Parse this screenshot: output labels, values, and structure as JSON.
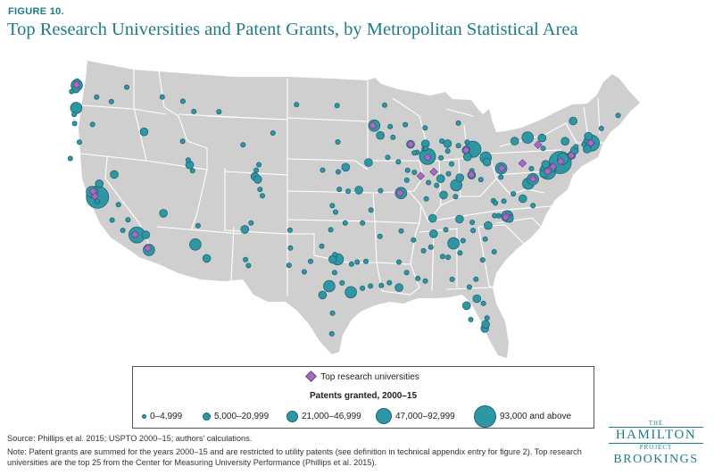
{
  "figure_label": "FIGURE 10.",
  "title": "Top Research Universities and Patent Grants, by Metropolitan Statistical Area",
  "legend": {
    "universities_label": "Top research universities",
    "size_heading": "Patents granted, 2000–15",
    "size_classes": [
      {
        "label": "0–4,999",
        "class": 1
      },
      {
        "label": "5,000–20,999",
        "class": 2
      },
      {
        "label": "21,000–46,999",
        "class": 3
      },
      {
        "label": "47,000–92,999",
        "class": 4
      },
      {
        "label": "93,000 and above",
        "class": 5
      }
    ]
  },
  "source": "Source: Phillips et al. 2015; USPTO 2000–15; authors' calculations.",
  "note": "Note: Patent grants are summed for the years 2000–15 and are restricted to utility patents (see definition in technical appendix entry for figure 2). Top research universities are the top 25 from the Center for Measuring University Performance (Phillips et al. 2015).",
  "logo": {
    "the": "THE",
    "hamilton": "HAMILTON",
    "project": "PROJECT",
    "brookings": "BROOKINGS"
  },
  "colors": {
    "land": "#cfcfcf",
    "borders": "#ffffff",
    "bubble_fill": "#2e97a5",
    "bubble_stroke": "#1d6470",
    "university_fill": "#a86cc1",
    "title": "#1f7c87"
  },
  "map": {
    "projection": "albers-usa-contiguous",
    "bubbles": [
      {
        "lon": -122.3,
        "lat": 47.6,
        "class": 3
      },
      {
        "lon": -122.45,
        "lat": 47.25,
        "class": 2
      },
      {
        "lon": -122.2,
        "lat": 48.0,
        "class": 1
      },
      {
        "lon": -122.9,
        "lat": 47.0,
        "class": 1
      },
      {
        "lon": -117.4,
        "lat": 47.65,
        "class": 1
      },
      {
        "lon": -120.5,
        "lat": 46.6,
        "class": 1
      },
      {
        "lon": -119.1,
        "lat": 46.25,
        "class": 1
      },
      {
        "lon": -122.7,
        "lat": 45.5,
        "class": 3
      },
      {
        "lon": -123.0,
        "lat": 44.9,
        "class": 1
      },
      {
        "lon": -123.1,
        "lat": 44.05,
        "class": 1
      },
      {
        "lon": -121.3,
        "lat": 44.05,
        "class": 1
      },
      {
        "lon": -122.9,
        "lat": 42.35,
        "class": 1
      },
      {
        "lon": -124.1,
        "lat": 40.8,
        "class": 1
      },
      {
        "lon": -121.5,
        "lat": 38.6,
        "class": 2
      },
      {
        "lon": -122.4,
        "lat": 37.8,
        "class": 3
      },
      {
        "lon": -121.9,
        "lat": 37.35,
        "class": 5
      },
      {
        "lon": -122.0,
        "lat": 36.95,
        "class": 1
      },
      {
        "lon": -119.8,
        "lat": 36.75,
        "class": 1
      },
      {
        "lon": -119.0,
        "lat": 35.4,
        "class": 1
      },
      {
        "lon": -120.7,
        "lat": 35.3,
        "class": 1
      },
      {
        "lon": -119.7,
        "lat": 34.4,
        "class": 1
      },
      {
        "lon": -118.25,
        "lat": 34.05,
        "class": 4
      },
      {
        "lon": -117.3,
        "lat": 34.1,
        "class": 2
      },
      {
        "lon": -117.15,
        "lat": 32.72,
        "class": 3
      },
      {
        "lon": -115.15,
        "lat": 36.17,
        "class": 2
      },
      {
        "lon": -119.8,
        "lat": 39.53,
        "class": 2
      },
      {
        "lon": -116.2,
        "lat": 43.6,
        "class": 2
      },
      {
        "lon": -112.4,
        "lat": 42.9,
        "class": 1
      },
      {
        "lon": -111.9,
        "lat": 40.76,
        "class": 2
      },
      {
        "lon": -111.65,
        "lat": 40.23,
        "class": 1
      },
      {
        "lon": -112.0,
        "lat": 41.2,
        "class": 1
      },
      {
        "lon": -111.6,
        "lat": 35.2,
        "class": 1
      },
      {
        "lon": -112.07,
        "lat": 33.45,
        "class": 3
      },
      {
        "lon": -110.97,
        "lat": 32.22,
        "class": 2
      },
      {
        "lon": -108.5,
        "lat": 45.8,
        "class": 1
      },
      {
        "lon": -111.0,
        "lat": 45.7,
        "class": 1
      },
      {
        "lon": -114.0,
        "lat": 46.9,
        "class": 1
      },
      {
        "lon": -112.0,
        "lat": 46.6,
        "class": 1
      },
      {
        "lon": -104.8,
        "lat": 41.1,
        "class": 1
      },
      {
        "lon": -106.3,
        "lat": 42.85,
        "class": 1
      },
      {
        "lon": -105.1,
        "lat": 40.58,
        "class": 1
      },
      {
        "lon": -105.27,
        "lat": 40.0,
        "class": 2
      },
      {
        "lon": -104.99,
        "lat": 39.74,
        "class": 2
      },
      {
        "lon": -104.82,
        "lat": 38.83,
        "class": 1
      },
      {
        "lon": -104.6,
        "lat": 38.25,
        "class": 1
      },
      {
        "lon": -106.65,
        "lat": 35.08,
        "class": 2
      },
      {
        "lon": -105.94,
        "lat": 35.69,
        "class": 1
      },
      {
        "lon": -106.49,
        "lat": 31.76,
        "class": 1
      },
      {
        "lon": -106.77,
        "lat": 32.3,
        "class": 1
      },
      {
        "lon": -100.78,
        "lat": 46.8,
        "class": 1
      },
      {
        "lon": -96.79,
        "lat": 46.88,
        "class": 1
      },
      {
        "lon": -96.73,
        "lat": 43.55,
        "class": 1
      },
      {
        "lon": -103.23,
        "lat": 44.08,
        "class": 1
      },
      {
        "lon": -96.7,
        "lat": 40.81,
        "class": 1
      },
      {
        "lon": -95.94,
        "lat": 41.26,
        "class": 2
      },
      {
        "lon": -97.34,
        "lat": 37.69,
        "class": 1
      },
      {
        "lon": -95.68,
        "lat": 39.05,
        "class": 1
      },
      {
        "lon": -97.52,
        "lat": 35.47,
        "class": 1
      },
      {
        "lon": -95.99,
        "lat": 36.15,
        "class": 1
      },
      {
        "lon": -101.85,
        "lat": 35.22,
        "class": 1
      },
      {
        "lon": -101.86,
        "lat": 33.58,
        "class": 1
      },
      {
        "lon": -96.8,
        "lat": 32.78,
        "class": 3
      },
      {
        "lon": -97.33,
        "lat": 32.75,
        "class": 2
      },
      {
        "lon": -97.74,
        "lat": 30.27,
        "class": 3
      },
      {
        "lon": -98.49,
        "lat": 29.42,
        "class": 2
      },
      {
        "lon": -95.37,
        "lat": 29.76,
        "class": 3
      },
      {
        "lon": -97.4,
        "lat": 27.8,
        "class": 1
      },
      {
        "lon": -97.5,
        "lat": 25.9,
        "class": 1
      },
      {
        "lon": -94.1,
        "lat": 30.08,
        "class": 1
      },
      {
        "lon": -93.1,
        "lat": 44.95,
        "class": 3
      },
      {
        "lon": -92.47,
        "lat": 44.02,
        "class": 2
      },
      {
        "lon": -92.1,
        "lat": 46.79,
        "class": 1
      },
      {
        "lon": -93.62,
        "lat": 41.59,
        "class": 2
      },
      {
        "lon": -91.67,
        "lat": 41.98,
        "class": 1
      },
      {
        "lon": -90.58,
        "lat": 41.52,
        "class": 1
      },
      {
        "lon": -94.58,
        "lat": 39.1,
        "class": 2
      },
      {
        "lon": -90.2,
        "lat": 38.63,
        "class": 3
      },
      {
        "lon": -92.33,
        "lat": 38.95,
        "class": 1
      },
      {
        "lon": -93.29,
        "lat": 37.21,
        "class": 1
      },
      {
        "lon": -92.29,
        "lat": 34.75,
        "class": 1
      },
      {
        "lon": -94.16,
        "lat": 36.06,
        "class": 1
      },
      {
        "lon": -91.15,
        "lat": 30.45,
        "class": 1
      },
      {
        "lon": -90.07,
        "lat": 29.95,
        "class": 2
      },
      {
        "lon": -93.75,
        "lat": 32.52,
        "class": 1
      },
      {
        "lon": -89.4,
        "lat": 43.07,
        "class": 2
      },
      {
        "lon": -87.9,
        "lat": 43.04,
        "class": 2
      },
      {
        "lon": -88.01,
        "lat": 44.52,
        "class": 1
      },
      {
        "lon": -87.63,
        "lat": 41.88,
        "class": 4
      },
      {
        "lon": -88.24,
        "lat": 40.11,
        "class": 1
      },
      {
        "lon": -89.6,
        "lat": 40.7,
        "class": 1
      },
      {
        "lon": -86.16,
        "lat": 39.77,
        "class": 2
      },
      {
        "lon": -86.25,
        "lat": 41.68,
        "class": 1
      },
      {
        "lon": -85.13,
        "lat": 41.08,
        "class": 1
      },
      {
        "lon": -86.91,
        "lat": 40.42,
        "class": 1
      },
      {
        "lon": -85.67,
        "lat": 42.96,
        "class": 2
      },
      {
        "lon": -84.55,
        "lat": 42.73,
        "class": 1
      },
      {
        "lon": -83.05,
        "lat": 42.33,
        "class": 4
      },
      {
        "lon": -83.74,
        "lat": 42.28,
        "class": 2
      },
      {
        "lon": -83.69,
        "lat": 43.01,
        "class": 1
      },
      {
        "lon": -81.69,
        "lat": 41.5,
        "class": 3
      },
      {
        "lon": -82.99,
        "lat": 39.96,
        "class": 2
      },
      {
        "lon": -84.51,
        "lat": 39.1,
        "class": 3
      },
      {
        "lon": -84.19,
        "lat": 39.76,
        "class": 2
      },
      {
        "lon": -83.55,
        "lat": 41.65,
        "class": 2
      },
      {
        "lon": -81.52,
        "lat": 41.08,
        "class": 2
      },
      {
        "lon": -80.0,
        "lat": 40.44,
        "class": 3
      },
      {
        "lon": -85.76,
        "lat": 38.25,
        "class": 2
      },
      {
        "lon": -84.5,
        "lat": 38.04,
        "class": 1
      },
      {
        "lon": -86.78,
        "lat": 36.16,
        "class": 2
      },
      {
        "lon": -83.92,
        "lat": 35.96,
        "class": 2
      },
      {
        "lon": -85.31,
        "lat": 35.05,
        "class": 1
      },
      {
        "lon": -90.05,
        "lat": 35.15,
        "class": 1
      },
      {
        "lon": -86.8,
        "lat": 33.52,
        "class": 1
      },
      {
        "lon": -86.59,
        "lat": 34.73,
        "class": 2
      },
      {
        "lon": -84.39,
        "lat": 33.75,
        "class": 3
      },
      {
        "lon": -83.38,
        "lat": 33.96,
        "class": 1
      },
      {
        "lon": -88.04,
        "lat": 30.69,
        "class": 1
      },
      {
        "lon": -90.18,
        "lat": 32.3,
        "class": 1
      },
      {
        "lon": -80.84,
        "lat": 35.23,
        "class": 2
      },
      {
        "lon": -78.9,
        "lat": 35.99,
        "class": 3
      },
      {
        "lon": -78.64,
        "lat": 35.78,
        "class": 2
      },
      {
        "lon": -79.79,
        "lat": 36.07,
        "class": 1
      },
      {
        "lon": -80.24,
        "lat": 36.1,
        "class": 1
      },
      {
        "lon": -82.55,
        "lat": 35.6,
        "class": 1
      },
      {
        "lon": -81.03,
        "lat": 34.0,
        "class": 1
      },
      {
        "lon": -82.39,
        "lat": 34.85,
        "class": 1
      },
      {
        "lon": -79.93,
        "lat": 32.78,
        "class": 1
      },
      {
        "lon": -81.1,
        "lat": 32.08,
        "class": 1
      },
      {
        "lon": -77.44,
        "lat": 37.54,
        "class": 2
      },
      {
        "lon": -76.29,
        "lat": 36.85,
        "class": 1
      },
      {
        "lon": -78.48,
        "lat": 38.03,
        "class": 1
      },
      {
        "lon": -77.04,
        "lat": 38.9,
        "class": 3
      },
      {
        "lon": -76.61,
        "lat": 39.29,
        "class": 3
      },
      {
        "lon": -75.16,
        "lat": 39.95,
        "class": 4
      },
      {
        "lon": -75.55,
        "lat": 39.74,
        "class": 2
      },
      {
        "lon": -74.0,
        "lat": 40.71,
        "class": 5
      },
      {
        "lon": -74.76,
        "lat": 40.22,
        "class": 2
      },
      {
        "lon": -73.76,
        "lat": 41.03,
        "class": 3
      },
      {
        "lon": -73.76,
        "lat": 42.65,
        "class": 2
      },
      {
        "lon": -77.61,
        "lat": 43.16,
        "class": 3
      },
      {
        "lon": -78.88,
        "lat": 42.89,
        "class": 2
      },
      {
        "lon": -76.15,
        "lat": 43.05,
        "class": 2
      },
      {
        "lon": -75.91,
        "lat": 42.1,
        "class": 1
      },
      {
        "lon": -76.5,
        "lat": 42.44,
        "class": 1
      },
      {
        "lon": -77.86,
        "lat": 40.79,
        "class": 1
      },
      {
        "lon": -76.88,
        "lat": 40.27,
        "class": 1
      },
      {
        "lon": -75.47,
        "lat": 40.6,
        "class": 2
      },
      {
        "lon": -72.92,
        "lat": 41.31,
        "class": 2
      },
      {
        "lon": -72.68,
        "lat": 41.76,
        "class": 2
      },
      {
        "lon": -71.41,
        "lat": 41.82,
        "class": 2
      },
      {
        "lon": -71.06,
        "lat": 42.36,
        "class": 4
      },
      {
        "lon": -71.8,
        "lat": 42.26,
        "class": 1
      },
      {
        "lon": -72.59,
        "lat": 42.1,
        "class": 1
      },
      {
        "lon": -71.46,
        "lat": 42.99,
        "class": 2
      },
      {
        "lon": -73.21,
        "lat": 44.48,
        "class": 2
      },
      {
        "lon": -70.26,
        "lat": 43.66,
        "class": 1
      },
      {
        "lon": -68.77,
        "lat": 44.8,
        "class": 1
      },
      {
        "lon": -81.38,
        "lat": 28.54,
        "class": 2
      },
      {
        "lon": -82.46,
        "lat": 27.95,
        "class": 2
      },
      {
        "lon": -80.19,
        "lat": 25.76,
        "class": 2
      },
      {
        "lon": -80.14,
        "lat": 26.12,
        "class": 2
      },
      {
        "lon": -80.05,
        "lat": 26.71,
        "class": 1
      },
      {
        "lon": -81.66,
        "lat": 30.33,
        "class": 1
      },
      {
        "lon": -84.28,
        "lat": 30.44,
        "class": 1
      },
      {
        "lon": -82.32,
        "lat": 29.65,
        "class": 1
      },
      {
        "lon": -80.61,
        "lat": 28.08,
        "class": 1
      },
      {
        "lon": -81.87,
        "lat": 26.64,
        "class": 1
      },
      {
        "lon": -87.22,
        "lat": 30.42,
        "class": 1
      },
      {
        "lon": -88.7,
        "lat": 42.3,
        "class": 1
      },
      {
        "lon": -89.0,
        "lat": 42.27,
        "class": 1
      },
      {
        "lon": -83.0,
        "lat": 40.35,
        "class": 1
      },
      {
        "lon": -82.0,
        "lat": 39.5,
        "class": 1
      },
      {
        "lon": -80.5,
        "lat": 37.5,
        "class": 1
      },
      {
        "lon": -79.95,
        "lat": 39.63,
        "class": 1
      },
      {
        "lon": -80.27,
        "lat": 37.27,
        "class": 1
      },
      {
        "lon": -79.4,
        "lat": 37.4,
        "class": 1
      },
      {
        "lon": -84.87,
        "lat": 32.5,
        "class": 1
      },
      {
        "lon": -83.63,
        "lat": 32.84,
        "class": 1
      },
      {
        "lon": -85.48,
        "lat": 32.6,
        "class": 1
      },
      {
        "lon": -87.57,
        "lat": 33.21,
        "class": 1
      },
      {
        "lon": -88.7,
        "lat": 34.26,
        "class": 1
      },
      {
        "lon": -89.3,
        "lat": 31.3,
        "class": 1
      },
      {
        "lon": -92.02,
        "lat": 30.22,
        "class": 1
      },
      {
        "lon": -93.22,
        "lat": 30.23,
        "class": 1
      },
      {
        "lon": -97.14,
        "lat": 31.55,
        "class": 1
      },
      {
        "lon": -96.33,
        "lat": 30.63,
        "class": 1
      },
      {
        "lon": -99.73,
        "lat": 32.45,
        "class": 1
      },
      {
        "lon": -100.44,
        "lat": 31.46,
        "class": 1
      },
      {
        "lon": -102.08,
        "lat": 31.99,
        "class": 1
      },
      {
        "lon": -94.7,
        "lat": 32.5,
        "class": 1
      },
      {
        "lon": -98.5,
        "lat": 33.9,
        "class": 1
      },
      {
        "lon": -97.1,
        "lat": 33.2,
        "class": 1
      },
      {
        "lon": -95.3,
        "lat": 32.35,
        "class": 1
      },
      {
        "lon": -97.0,
        "lat": 37.1,
        "class": 1
      },
      {
        "lon": -96.6,
        "lat": 39.2,
        "class": 1
      },
      {
        "lon": -98.3,
        "lat": 40.9,
        "class": 1
      },
      {
        "lon": -90.0,
        "lat": 44.9,
        "class": 1
      },
      {
        "lon": -91.5,
        "lat": 44.8,
        "class": 1
      },
      {
        "lon": -91.2,
        "lat": 43.8,
        "class": 1
      },
      {
        "lon": -84.7,
        "lat": 44.8,
        "class": 1
      },
      {
        "lon": -86.25,
        "lat": 43.23,
        "class": 1
      },
      {
        "lon": -85.6,
        "lat": 42.29,
        "class": 1
      },
      {
        "lon": -87.55,
        "lat": 37.97,
        "class": 1
      },
      {
        "lon": -89.65,
        "lat": 39.8,
        "class": 1
      },
      {
        "lon": -88.9,
        "lat": 40.48,
        "class": 1
      },
      {
        "lon": -87.4,
        "lat": 39.47,
        "class": 1
      },
      {
        "lon": -85.39,
        "lat": 40.19,
        "class": 1
      },
      {
        "lon": -86.53,
        "lat": 39.17,
        "class": 1
      },
      {
        "lon": -88.0,
        "lat": 42.6,
        "class": 1
      },
      {
        "lon": -87.87,
        "lat": 42.6,
        "class": 1
      }
    ],
    "universities": [
      {
        "lon": -122.3,
        "lat": 47.65
      },
      {
        "lon": -122.17,
        "lat": 37.43
      },
      {
        "lon": -122.26,
        "lat": 37.87
      },
      {
        "lon": -118.45,
        "lat": 34.07
      },
      {
        "lon": -117.24,
        "lat": 32.88
      },
      {
        "lon": -89.4,
        "lat": 43.07
      },
      {
        "lon": -93.23,
        "lat": 44.97
      },
      {
        "lon": -87.6,
        "lat": 41.79
      },
      {
        "lon": -88.23,
        "lat": 40.1
      },
      {
        "lon": -86.91,
        "lat": 40.43
      },
      {
        "lon": -90.31,
        "lat": 38.65
      },
      {
        "lon": -83.74,
        "lat": 42.28
      },
      {
        "lon": -83.02,
        "lat": 40.0
      },
      {
        "lon": -79.95,
        "lat": 40.44
      },
      {
        "lon": -77.86,
        "lat": 40.8
      },
      {
        "lon": -76.48,
        "lat": 42.45
      },
      {
        "lon": -75.19,
        "lat": 39.95
      },
      {
        "lon": -76.62,
        "lat": 39.33
      },
      {
        "lon": -74.66,
        "lat": 40.35
      },
      {
        "lon": -73.96,
        "lat": 40.81
      },
      {
        "lon": -72.92,
        "lat": 41.31
      },
      {
        "lon": -71.09,
        "lat": 42.36
      },
      {
        "lon": -71.12,
        "lat": 42.37
      },
      {
        "lon": -78.94,
        "lat": 36.0
      },
      {
        "lon": -79.05,
        "lat": 35.9
      }
    ]
  }
}
